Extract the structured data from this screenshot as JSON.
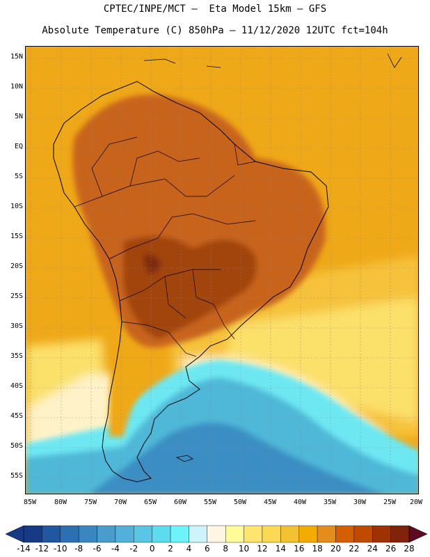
{
  "title_line1": "CPTEC/INPE/MCT –  Eta Model 15km – GFS",
  "title_line2": "Absolute Temperature (C) 850hPa – 11/12/2020 12UTC fct=104h",
  "lat_labels": [
    "15N",
    "10N",
    "5N",
    "EQ",
    "5S",
    "10S",
    "15S",
    "20S",
    "25S",
    "30S",
    "35S",
    "40S",
    "45S",
    "50S",
    "55S"
  ],
  "lon_labels": [
    "85W",
    "80W",
    "75W",
    "70W",
    "65W",
    "60W",
    "55W",
    "50W",
    "45W",
    "40W",
    "35W",
    "30W",
    "25W",
    "20W"
  ],
  "colorbar_labels": [
    "-14",
    "-12",
    "-10",
    "-8",
    "-6",
    "-4",
    "-2",
    "0",
    "2",
    "4",
    "6",
    "8",
    "10",
    "12",
    "14",
    "16",
    "18",
    "20",
    "22",
    "24",
    "26",
    "28"
  ],
  "colorbar_colors": [
    "#173a86",
    "#2156a0",
    "#2c70b2",
    "#3a86c0",
    "#4a9ccd",
    "#52b0da",
    "#58c6e4",
    "#5cdcee",
    "#6ff3f8",
    "#cdf4fb",
    "#fff7e3",
    "#fffb9b",
    "#ffe46d",
    "#fbd955",
    "#f2c232",
    "#f2ab00",
    "#e48d1d",
    "#d45e00",
    "#c04a00",
    "#9f3300",
    "#80230b"
  ],
  "map_colors": {
    "ocean_warm": "#efa818",
    "ocean_mid": "#f6c23a",
    "ocean_cool": "#fbe06a",
    "pale": "#fff2c8",
    "cyan": "#6de8f2",
    "teal": "#4fb8d8",
    "deep": "#3a8ec4",
    "land_hot": "#c8641e",
    "land_very_hot": "#a24410",
    "land_extreme": "#7e2a0a"
  }
}
